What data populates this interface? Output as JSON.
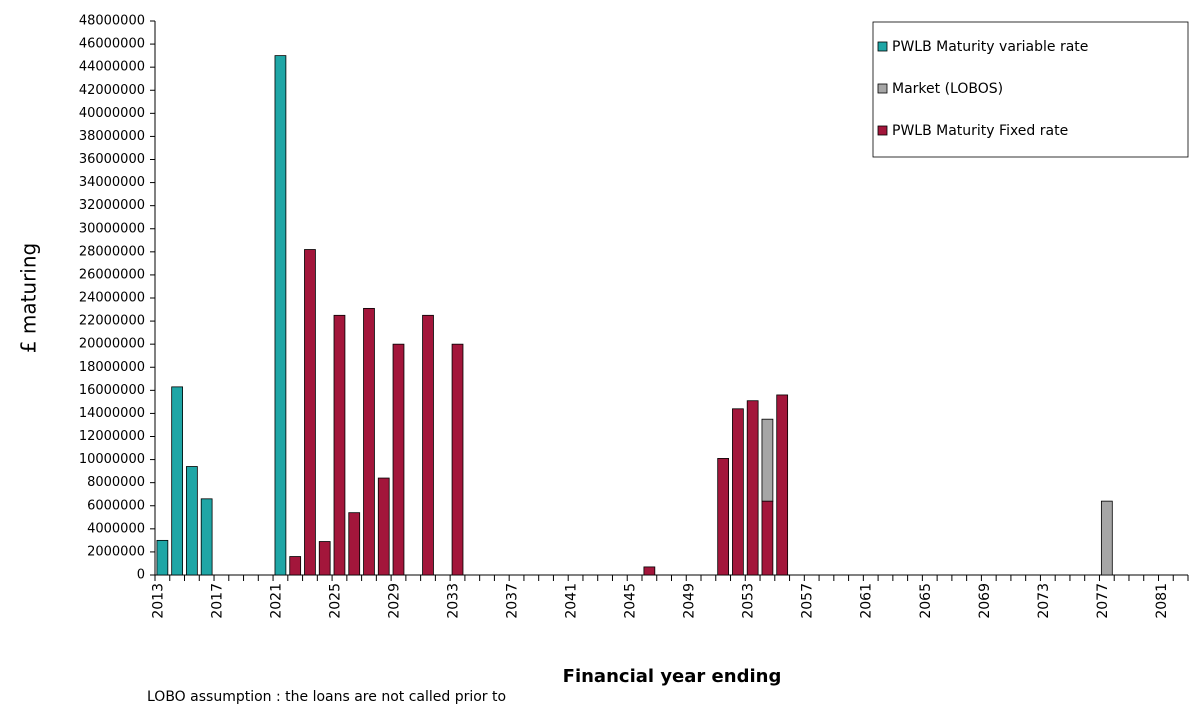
{
  "chart_data": {
    "type": "bar",
    "stacked": true,
    "xlabel": "Financial year ending",
    "ylabel": "£ maturing",
    "note": "LOBO assumption : the loans are not called prior to",
    "categories": [
      "2013",
      null,
      null,
      null,
      "2017",
      null,
      null,
      null,
      "2021",
      null,
      null,
      null,
      "2025",
      null,
      null,
      null,
      "2029",
      null,
      null,
      null,
      "2033",
      null,
      null,
      null,
      "2037",
      null,
      null,
      null,
      "2041",
      null,
      null,
      null,
      "2045",
      null,
      null,
      null,
      "2049",
      null,
      null,
      null,
      "2053",
      null,
      null,
      null,
      "2057",
      null,
      null,
      null,
      "2061",
      null,
      null,
      null,
      "2065",
      null,
      null,
      null,
      "2069",
      null,
      null,
      null,
      "2073",
      null,
      null,
      null,
      "2077",
      null,
      null,
      null,
      "2081",
      null
    ],
    "series": [
      {
        "name": "PWLB Maturity variable rate",
        "color": "#1fa6a6",
        "values": [
          3000000,
          16300000,
          9400000,
          6600000,
          null,
          null,
          null,
          null,
          45000000,
          null,
          null,
          null,
          null,
          null,
          null,
          null,
          null,
          null,
          null,
          null,
          null,
          null,
          null,
          null,
          null,
          null,
          null,
          null,
          null,
          null,
          null,
          null,
          null,
          null,
          null,
          null,
          null,
          null,
          null,
          null,
          null,
          null,
          null,
          null,
          null,
          null,
          null,
          null,
          null,
          null,
          null,
          null,
          null,
          null,
          null,
          null,
          null,
          null,
          null,
          null,
          null,
          null,
          null,
          null,
          null,
          null,
          null,
          null,
          null,
          null
        ]
      },
      {
        "name": "Market (LOBOS)",
        "color": "#a6a6a6",
        "values": [
          null,
          null,
          null,
          null,
          null,
          null,
          null,
          null,
          null,
          null,
          null,
          null,
          null,
          null,
          null,
          null,
          null,
          null,
          null,
          null,
          null,
          null,
          null,
          null,
          null,
          null,
          null,
          null,
          null,
          null,
          null,
          null,
          null,
          null,
          null,
          null,
          null,
          null,
          null,
          null,
          null,
          7100000,
          null,
          null,
          null,
          null,
          null,
          null,
          null,
          null,
          null,
          null,
          null,
          null,
          null,
          null,
          null,
          null,
          null,
          null,
          null,
          null,
          null,
          null,
          6400000,
          null,
          null,
          null,
          null,
          null
        ]
      },
      {
        "name": "PWLB Maturity Fixed rate",
        "color": "#a3163b",
        "values": [
          null,
          null,
          null,
          null,
          null,
          null,
          null,
          null,
          null,
          1600000,
          28200000,
          2900000,
          22500000,
          5400000,
          23100000,
          8400000,
          20000000,
          null,
          22500000,
          null,
          20000000,
          null,
          null,
          null,
          null,
          null,
          null,
          null,
          null,
          null,
          null,
          null,
          null,
          700000,
          null,
          null,
          null,
          null,
          10100000,
          14400000,
          15100000,
          6400000,
          15600000,
          null,
          null,
          null,
          null,
          null,
          null,
          null,
          null,
          null,
          null,
          null,
          null,
          null,
          null,
          null,
          null,
          null,
          null,
          null,
          null,
          null,
          null,
          null,
          null,
          null,
          null,
          null
        ]
      }
    ],
    "ylim": [
      0,
      48000000
    ],
    "yticks": [
      0,
      2000000,
      4000000,
      6000000,
      8000000,
      10000000,
      12000000,
      14000000,
      16000000,
      18000000,
      20000000,
      22000000,
      24000000,
      26000000,
      28000000,
      30000000,
      32000000,
      34000000,
      36000000,
      38000000,
      40000000,
      42000000,
      44000000,
      46000000,
      48000000
    ],
    "grid": false,
    "legend": "top-right"
  }
}
